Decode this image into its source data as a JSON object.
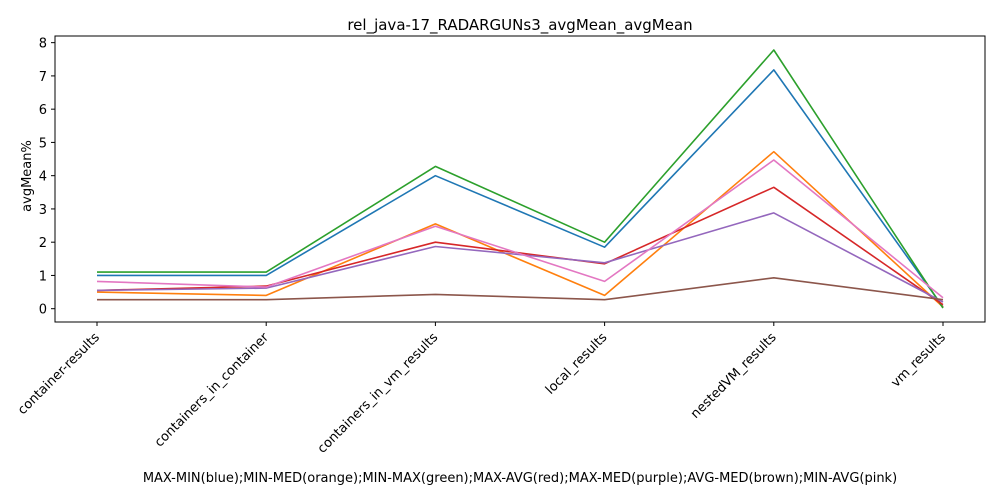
{
  "chart_data": {
    "type": "line",
    "title": "rel_java-17_RADARGUNs3_avgMean_avgMean",
    "xlabel": "MAX-MIN(blue);MIN-MED(orange);MIN-MAX(green);MAX-AVG(red);MAX-MED(purple);AVG-MED(brown);MIN-AVG(pink)",
    "ylabel": "avgMean%",
    "categories": [
      "container-results",
      "containers_in_container",
      "containers_in_vm_results",
      "local_results",
      "nestedVM_results",
      "vm_results"
    ],
    "ylim": [
      -0.4,
      8.2
    ],
    "yticks": [
      0,
      1,
      2,
      3,
      4,
      5,
      6,
      7,
      8
    ],
    "grid": false,
    "series": [
      {
        "color": "#1f77b4",
        "values": [
          1.0,
          1.0,
          4.0,
          1.85,
          7.18,
          0.05
        ]
      },
      {
        "color": "#ff7f0e",
        "values": [
          0.5,
          0.4,
          2.55,
          0.4,
          4.72,
          0.05
        ]
      },
      {
        "color": "#2ca02c",
        "values": [
          1.1,
          1.1,
          4.28,
          2.0,
          7.78,
          0.02
        ]
      },
      {
        "color": "#d62728",
        "values": [
          0.55,
          0.68,
          2.0,
          1.35,
          3.65,
          0.12
        ]
      },
      {
        "color": "#9467bd",
        "values": [
          0.55,
          0.62,
          1.87,
          1.38,
          2.88,
          0.2
        ]
      },
      {
        "color": "#8c564b",
        "values": [
          0.27,
          0.27,
          0.43,
          0.27,
          0.93,
          0.27
        ]
      },
      {
        "color": "#e377c2",
        "values": [
          0.82,
          0.65,
          2.48,
          0.82,
          4.47,
          0.33
        ]
      }
    ]
  }
}
